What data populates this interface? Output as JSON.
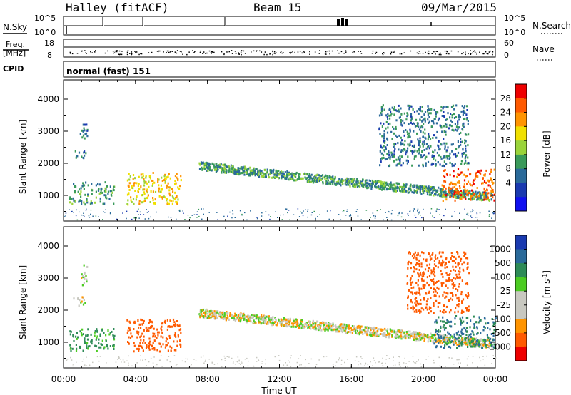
{
  "header": {
    "station": "Halley (fitACF)",
    "beam": "Beam 15",
    "date": "09/Mar/2015"
  },
  "panels": {
    "nsky_label": "N.Sky",
    "nsky_ticks": [
      "10^5",
      "10^0"
    ],
    "nsearch_label": "N.Search",
    "nsearch_ticks": [
      "10^5",
      "10^0"
    ],
    "freq_label": "Freq.",
    "freq_unit": "[MHz]",
    "freq_ticks": [
      "18",
      "8"
    ],
    "nave_label": "Nave",
    "nave_ticks": [
      "60",
      "0"
    ],
    "cpid_label": "CPID",
    "cpid_value": "normal (fast) 151"
  },
  "x_axis": {
    "label": "Time UT",
    "ticks": [
      "00:00",
      "04:00",
      "08:00",
      "12:00",
      "16:00",
      "20:00",
      "00:00"
    ]
  },
  "y_axis": {
    "label": "Slant Range [km]",
    "ticks": [
      "4000",
      "3000",
      "2000",
      "1000"
    ]
  },
  "power_colorbar": {
    "label": "Power [dB]",
    "ticks": [
      "28",
      "24",
      "20",
      "16",
      "12",
      "8",
      "4"
    ],
    "colors": [
      "#ee0000",
      "#ff5a00",
      "#ff9400",
      "#f0e000",
      "#9ad43a",
      "#3a9a5a",
      "#2a6a9a",
      "#1a3ab0",
      "#1010f0"
    ]
  },
  "velocity_colorbar": {
    "label": "Velocity [m s",
    "label_sup": "-1",
    "label_end": "]",
    "ticks": [
      "1000",
      "500",
      "100",
      "25",
      "-25",
      "-100",
      "-500",
      "-1000"
    ],
    "colors": [
      "#1a3ab0",
      "#2a6a9a",
      "#2e8b57",
      "#4ccc22",
      "#c8c8c0",
      "#c8c8c0",
      "#ff9400",
      "#ff5a00",
      "#ee0000"
    ]
  },
  "chart_data": [
    {
      "type": "heatmap",
      "title": "Power",
      "x": "Time UT (hours)",
      "xlim": [
        0,
        24
      ],
      "ylim": [
        200,
        4600
      ],
      "colorbar": "Power [dB]",
      "features": [
        {
          "t": [
            0.5,
            1.2
          ],
          "r": [
            2100,
            2400
          ],
          "value": 8
        },
        {
          "t": [
            0.9,
            1.3
          ],
          "r": [
            2700,
            3400
          ],
          "value": 8
        },
        {
          "t": [
            0.3,
            2.8
          ],
          "r": [
            700,
            1400
          ],
          "value": 10
        },
        {
          "t": [
            3.5,
            6.5
          ],
          "r": [
            700,
            1700
          ],
          "value": 18
        },
        {
          "t": [
            7.5,
            23.8
          ],
          "r": [
            900,
            2100
          ],
          "value": 10
        },
        {
          "t": [
            17.5,
            22.5
          ],
          "r": [
            1900,
            3800
          ],
          "value": 8
        },
        {
          "t": [
            21.0,
            24.0
          ],
          "r": [
            800,
            1800
          ],
          "value": 24
        }
      ]
    },
    {
      "type": "heatmap",
      "title": "Velocity",
      "x": "Time UT (hours)",
      "xlim": [
        0,
        24
      ],
      "ylim": [
        200,
        4600
      ],
      "colorbar": "Velocity [m s^-1]",
      "features": [
        {
          "t": [
            0.5,
            1.2
          ],
          "r": [
            2100,
            2400
          ],
          "value": 0
        },
        {
          "t": [
            0.9,
            1.3
          ],
          "r": [
            2700,
            3400
          ],
          "value": 0
        },
        {
          "t": [
            0.3,
            2.8
          ],
          "r": [
            700,
            1400
          ],
          "value": 100
        },
        {
          "t": [
            3.5,
            6.5
          ],
          "r": [
            700,
            1700
          ],
          "value": -300
        },
        {
          "t": [
            7.5,
            23.8
          ],
          "r": [
            900,
            2100
          ],
          "value": 0
        },
        {
          "t": [
            19.0,
            22.5
          ],
          "r": [
            1900,
            3800
          ],
          "value": -300
        },
        {
          "t": [
            20.5,
            24.0
          ],
          "r": [
            800,
            1800
          ],
          "value": 200
        }
      ]
    }
  ]
}
